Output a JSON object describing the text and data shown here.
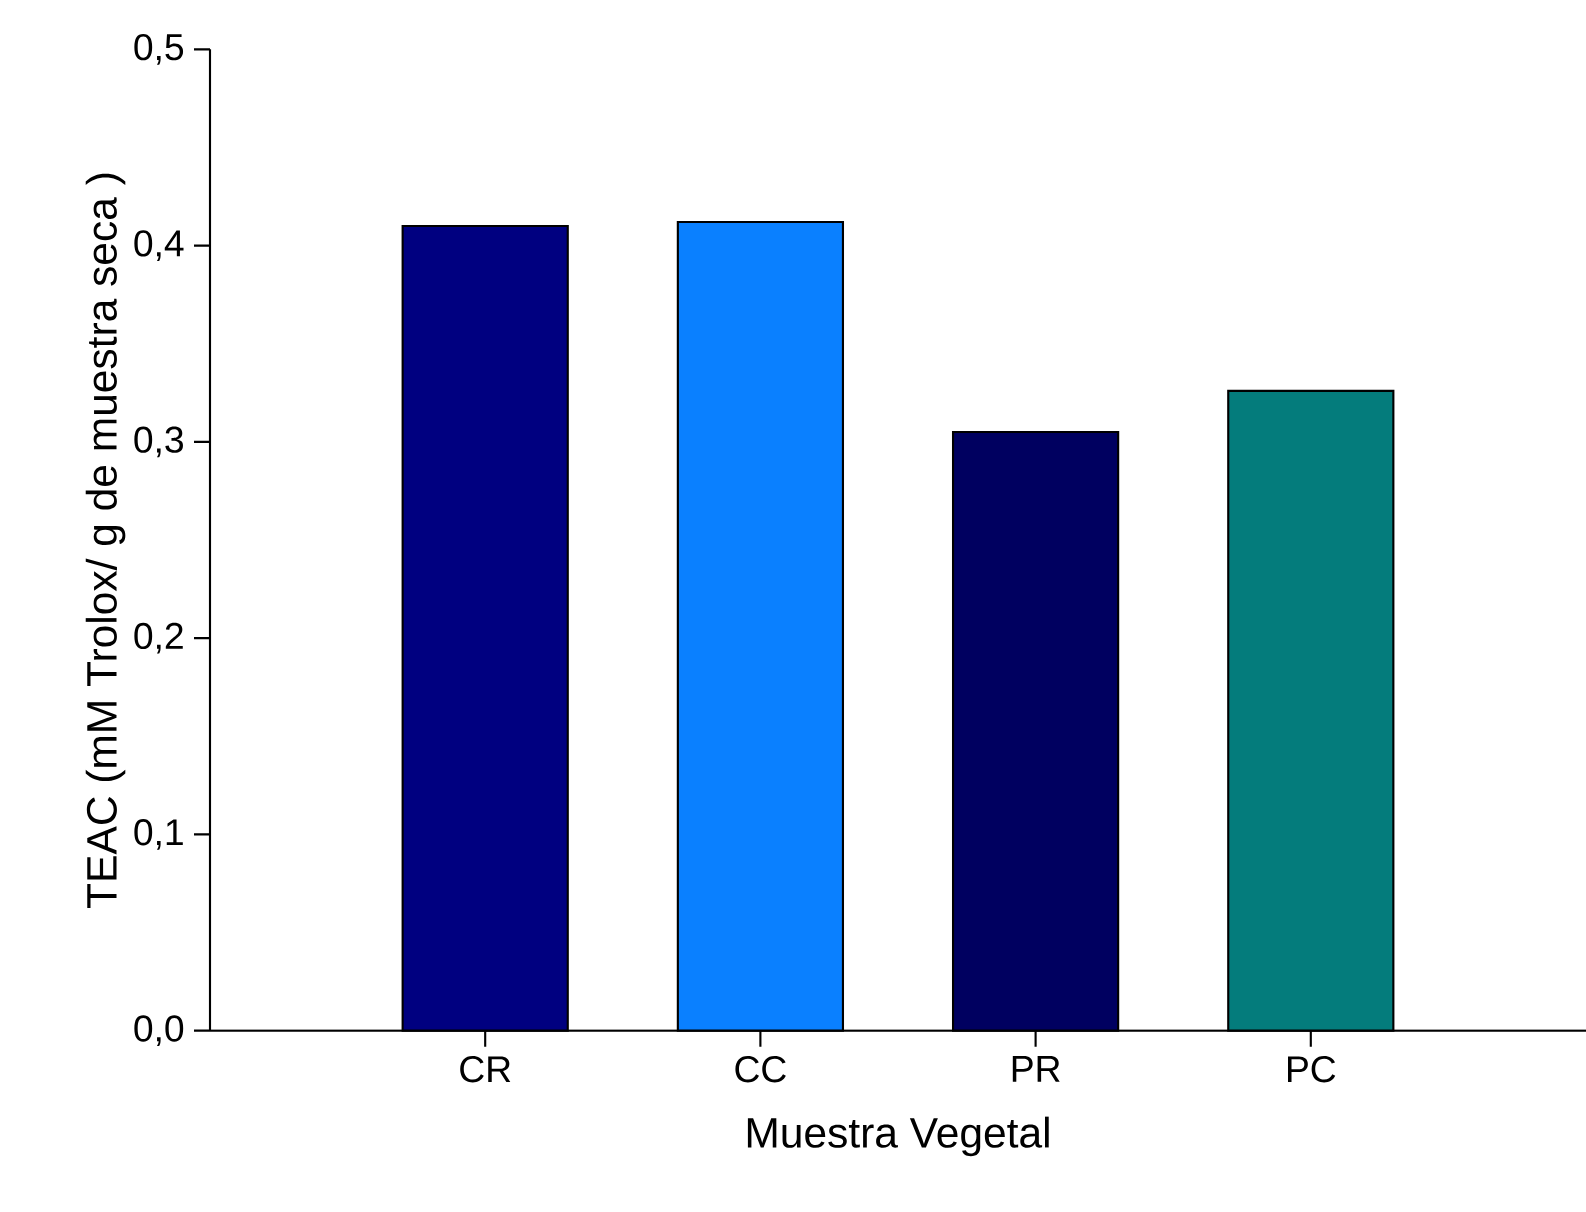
{
  "chart_data": {
    "type": "bar",
    "xlabel": "Muestra Vegetal",
    "ylabel": "TEAC (mM Trolox/ g de muestra seca )",
    "categories": [
      "CR",
      "CC",
      "PR",
      "PC"
    ],
    "values": [
      0.41,
      0.412,
      0.305,
      0.326
    ],
    "colors": [
      "#000080",
      "#0a80ff",
      "#000060",
      "#047c7c"
    ],
    "ylim": [
      0,
      0.5
    ],
    "yticks": [
      {
        "value": 0,
        "label": "0,0"
      },
      {
        "value": 0.1,
        "label": "0,1"
      },
      {
        "value": 0.2,
        "label": "0,2"
      },
      {
        "value": 0.3,
        "label": "0,3"
      },
      {
        "value": 0.4,
        "label": "0,4"
      },
      {
        "value": 0.5,
        "label": "0,5"
      }
    ]
  }
}
